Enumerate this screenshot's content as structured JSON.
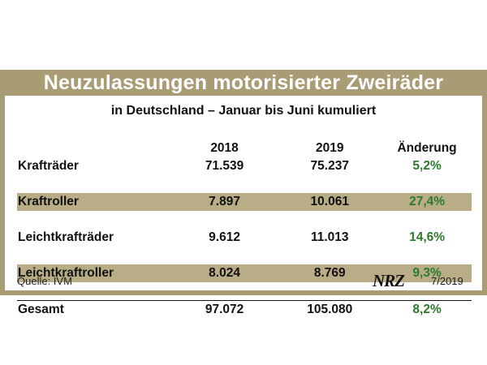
{
  "title": "Neuzulassungen motorisierter Zweiräder",
  "subtitle": "in Deutschland – Januar bis Juni kumuliert",
  "chart_data": {
    "type": "table",
    "columns": [
      "",
      "2018",
      "2019",
      "Änderung"
    ],
    "rows": [
      {
        "label": "Krafträder",
        "v2018": "71.539",
        "v2019": "75.237",
        "change": "5,2%",
        "shaded": false
      },
      {
        "label": "Kraftroller",
        "v2018": "7.897",
        "v2019": "10.061",
        "change": "27,4%",
        "shaded": true
      },
      {
        "label": "Leichtkrafträder",
        "v2018": "9.612",
        "v2019": "11.013",
        "change": "14,6%",
        "shaded": false
      },
      {
        "label": "Leichtkraftroller",
        "v2018": "8.024",
        "v2019": "8.769",
        "change": "9,3%",
        "shaded": true
      }
    ],
    "total": {
      "label": "Gesamt",
      "v2018": "97.072",
      "v2019": "105.080",
      "change": "8,2%"
    }
  },
  "footer": {
    "source": "Quelle: IVM",
    "logo": "NRZ",
    "date": "7/2019"
  },
  "colors": {
    "frame": "#a99b73",
    "shaded_row": "#b8ad87",
    "change_text": "#2d7a2d"
  }
}
